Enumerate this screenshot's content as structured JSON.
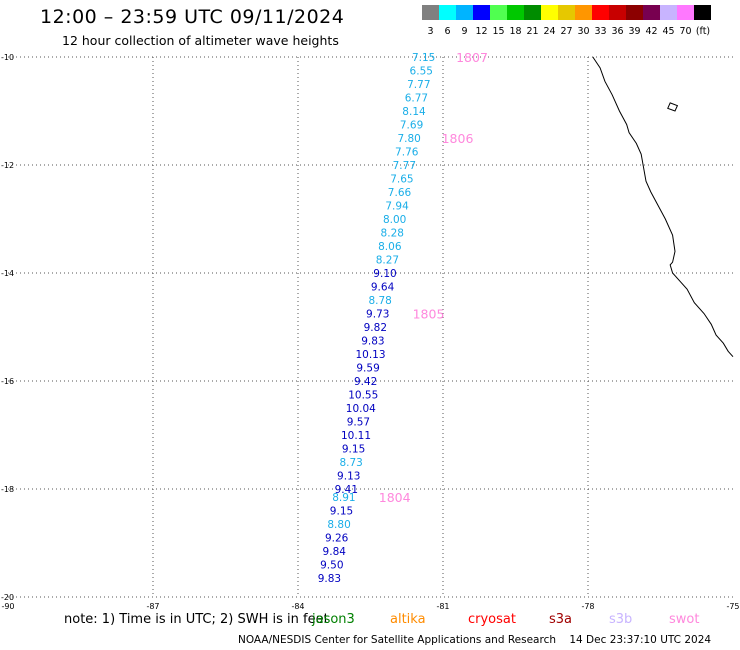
{
  "header": {
    "title": "12:00 – 23:59 UTC 09/11/2024",
    "subtitle": "12 hour collection of altimeter wave heights"
  },
  "colors": {
    "track_light": "#1aaee8",
    "track_dark": "#0000c0",
    "pass_label": "#ff88dd",
    "grid": "#555555"
  },
  "legend": {
    "unit": "(ft)",
    "bins": [
      {
        "label": "3",
        "color": "#808080"
      },
      {
        "label": "6",
        "color": "#00ffff"
      },
      {
        "label": "9",
        "color": "#00b4ff"
      },
      {
        "label": "12",
        "color": "#0000ff"
      },
      {
        "label": "15",
        "color": "#50ff50"
      },
      {
        "label": "18",
        "color": "#00c800"
      },
      {
        "label": "21",
        "color": "#008c00"
      },
      {
        "label": "24",
        "color": "#ffff00"
      },
      {
        "label": "27",
        "color": "#e6c800"
      },
      {
        "label": "30",
        "color": "#ff9600"
      },
      {
        "label": "33",
        "color": "#ff0000"
      },
      {
        "label": "36",
        "color": "#c80000"
      },
      {
        "label": "39",
        "color": "#8c0000"
      },
      {
        "label": "42",
        "color": "#780050"
      },
      {
        "label": "45",
        "color": "#c8b4ff"
      },
      {
        "label": "70",
        "color": "#ff78ff"
      },
      {
        "label": "",
        "color": "#000000"
      }
    ]
  },
  "map": {
    "lon_ticks": [
      "-90",
      "-87",
      "-84",
      "-81",
      "-78",
      "-75"
    ],
    "lat_ticks": [
      "-10",
      "-12",
      "-14",
      "-16",
      "-18",
      "-20"
    ],
    "lon_range": [
      -90,
      -75
    ],
    "lat_range": [
      -20,
      -10
    ],
    "grid": "dotted"
  },
  "track": [
    {
      "lon": -81.4,
      "lat": -10.0,
      "swh": "7.15",
      "band": "light"
    },
    {
      "lon": -81.45,
      "lat": -10.25,
      "swh": "6.55",
      "band": "light"
    },
    {
      "lon": -81.5,
      "lat": -10.5,
      "swh": "7.77",
      "band": "light"
    },
    {
      "lon": -81.55,
      "lat": -10.75,
      "swh": "6.77",
      "band": "light"
    },
    {
      "lon": -81.6,
      "lat": -11.0,
      "swh": "8.14",
      "band": "light"
    },
    {
      "lon": -81.65,
      "lat": -11.25,
      "swh": "7.69",
      "band": "light"
    },
    {
      "lon": -81.7,
      "lat": -11.5,
      "swh": "7.80",
      "band": "light"
    },
    {
      "lon": -81.75,
      "lat": -11.75,
      "swh": "7.76",
      "band": "light"
    },
    {
      "lon": -81.8,
      "lat": -12.0,
      "swh": "7.77",
      "band": "light"
    },
    {
      "lon": -81.85,
      "lat": -12.25,
      "swh": "7.65",
      "band": "light"
    },
    {
      "lon": -81.9,
      "lat": -12.5,
      "swh": "7.66",
      "band": "light"
    },
    {
      "lon": -81.95,
      "lat": -12.75,
      "swh": "7.94",
      "band": "light"
    },
    {
      "lon": -82.0,
      "lat": -13.0,
      "swh": "8.00",
      "band": "light"
    },
    {
      "lon": -82.05,
      "lat": -13.25,
      "swh": "8.28",
      "band": "light"
    },
    {
      "lon": -82.1,
      "lat": -13.5,
      "swh": "8.06",
      "band": "light"
    },
    {
      "lon": -82.15,
      "lat": -13.75,
      "swh": "8.27",
      "band": "light"
    },
    {
      "lon": -82.2,
      "lat": -14.0,
      "swh": "9.10",
      "band": "dark"
    },
    {
      "lon": -82.25,
      "lat": -14.25,
      "swh": "9.64",
      "band": "dark"
    },
    {
      "lon": -82.3,
      "lat": -14.5,
      "swh": "8.78",
      "band": "light"
    },
    {
      "lon": -82.35,
      "lat": -14.75,
      "swh": "9.73",
      "band": "dark"
    },
    {
      "lon": -82.4,
      "lat": -15.0,
      "swh": "9.82",
      "band": "dark"
    },
    {
      "lon": -82.45,
      "lat": -15.25,
      "swh": "9.83",
      "band": "dark"
    },
    {
      "lon": -82.5,
      "lat": -15.5,
      "swh": "10.13",
      "band": "dark"
    },
    {
      "lon": -82.55,
      "lat": -15.75,
      "swh": "9.59",
      "band": "dark"
    },
    {
      "lon": -82.6,
      "lat": -16.0,
      "swh": "9.42",
      "band": "dark"
    },
    {
      "lon": -82.65,
      "lat": -16.25,
      "swh": "10.55",
      "band": "dark"
    },
    {
      "lon": -82.7,
      "lat": -16.5,
      "swh": "10.04",
      "band": "dark"
    },
    {
      "lon": -82.75,
      "lat": -16.75,
      "swh": "9.57",
      "band": "dark"
    },
    {
      "lon": -82.8,
      "lat": -17.0,
      "swh": "10.11",
      "band": "dark"
    },
    {
      "lon": -82.85,
      "lat": -17.25,
      "swh": "9.15",
      "band": "dark"
    },
    {
      "lon": -82.9,
      "lat": -17.5,
      "swh": "8.73",
      "band": "light"
    },
    {
      "lon": -82.95,
      "lat": -17.75,
      "swh": "9.13",
      "band": "dark"
    },
    {
      "lon": -83.0,
      "lat": -18.0,
      "swh": "9.41",
      "band": "dark"
    },
    {
      "lon": -83.05,
      "lat": -18.15,
      "swh": "8.91",
      "band": "light"
    },
    {
      "lon": -83.1,
      "lat": -18.4,
      "swh": "9.15",
      "band": "dark"
    },
    {
      "lon": -83.15,
      "lat": -18.65,
      "swh": "8.80",
      "band": "light"
    },
    {
      "lon": -83.2,
      "lat": -18.9,
      "swh": "9.26",
      "band": "dark"
    },
    {
      "lon": -83.25,
      "lat": -19.15,
      "swh": "9.84",
      "band": "dark"
    },
    {
      "lon": -83.3,
      "lat": -19.4,
      "swh": "9.50",
      "band": "dark"
    },
    {
      "lon": -83.35,
      "lat": -19.65,
      "swh": "9.83",
      "band": "dark"
    }
  ],
  "pass_times": [
    {
      "lon": -80.4,
      "lat": -10.0,
      "text": "1807"
    },
    {
      "lon": -80.7,
      "lat": -11.5,
      "text": "1806"
    },
    {
      "lon": -81.3,
      "lat": -14.75,
      "text": "1805"
    },
    {
      "lon": -82.0,
      "lat": -18.15,
      "text": "1804"
    }
  ],
  "coastline": [
    [
      -77.9,
      -10.0
    ],
    [
      -77.75,
      -10.2
    ],
    [
      -77.65,
      -10.45
    ],
    [
      -77.5,
      -10.7
    ],
    [
      -77.35,
      -11.0
    ],
    [
      -77.2,
      -11.25
    ],
    [
      -77.15,
      -11.4
    ],
    [
      -77.0,
      -11.6
    ],
    [
      -76.9,
      -11.8
    ],
    [
      -76.85,
      -12.05
    ],
    [
      -76.8,
      -12.3
    ],
    [
      -76.7,
      -12.5
    ],
    [
      -76.55,
      -12.75
    ],
    [
      -76.4,
      -13.0
    ],
    [
      -76.25,
      -13.3
    ],
    [
      -76.2,
      -13.6
    ],
    [
      -76.25,
      -13.8
    ],
    [
      -76.3,
      -13.85
    ],
    [
      -76.25,
      -14.0
    ],
    [
      -76.1,
      -14.15
    ],
    [
      -75.95,
      -14.3
    ],
    [
      -75.8,
      -14.55
    ],
    [
      -75.6,
      -14.75
    ],
    [
      -75.45,
      -14.95
    ],
    [
      -75.35,
      -15.15
    ],
    [
      -75.2,
      -15.3
    ],
    [
      -75.1,
      -15.45
    ],
    [
      -75.0,
      -15.55
    ]
  ],
  "island": [
    [
      -76.3,
      -10.85
    ],
    [
      -76.15,
      -10.9
    ],
    [
      -76.2,
      -11.0
    ],
    [
      -76.35,
      -10.95
    ]
  ],
  "note": "note:  1) Time is in UTC; 2) SWH is in feet",
  "satellites": [
    {
      "name": "jason3",
      "color": "#008000"
    },
    {
      "name": "altika",
      "color": "#ff8c00"
    },
    {
      "name": "cryosat",
      "color": "#ff0000"
    },
    {
      "name": "s3a",
      "color": "#a00000"
    },
    {
      "name": "s3b",
      "color": "#c8b4ff"
    },
    {
      "name": "swot",
      "color": "#ff88dd"
    }
  ],
  "footer": "NOAA/NESDIS Center for Satellite Applications and Research    14 Dec 23:37:10 UTC 2024"
}
